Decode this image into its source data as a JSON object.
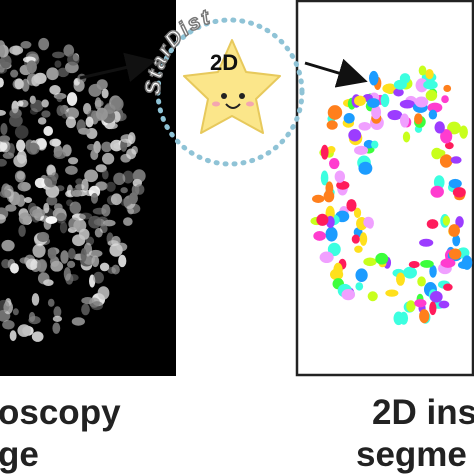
{
  "left_panel": {
    "caption_lines": [
      "oscopy",
      "ge"
    ]
  },
  "logo": {
    "brand": "StarDist",
    "label": "2D"
  },
  "right_panel": {
    "caption_lines": [
      "2D ins",
      "segme"
    ]
  }
}
